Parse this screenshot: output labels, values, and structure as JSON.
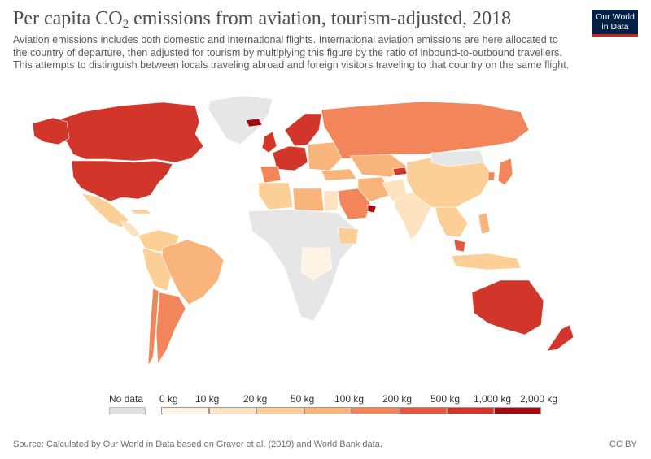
{
  "header": {
    "title_main": "Per capita CO",
    "title_sub": "2",
    "title_rest": " emissions from aviation, tourism-adjusted, 2018",
    "subtitle": "Aviation emissions includes both domestic and international flights. International aviation emissions are here allocated to the country of departure, then adjusted for tourism by multiplying this figure by the ratio of inbound-to-outbound travellers. This attempts to distinguish between locals traveling abroad and foreign visitors traveling to that country on the same flight."
  },
  "logo": {
    "line1": "Our World",
    "line2": "in Data"
  },
  "legend": {
    "no_data_label": "No data",
    "no_data_color": "#e0e0e0",
    "tick_labels": [
      "0 kg",
      "10 kg",
      "20 kg",
      "50 kg",
      "100 kg",
      "200 kg",
      "500 kg",
      "1,000 kg",
      "2,000 kg"
    ],
    "bin_colors": [
      "#fff3e3",
      "#fde3bf",
      "#fbcf95",
      "#f8b47a",
      "#f2865a",
      "#e5573f",
      "#d2352a",
      "#a30b12"
    ]
  },
  "map_colors": {
    "no_data": "#e6e6e6",
    "bin0": "#fff3e3",
    "bin1": "#fde3bf",
    "bin2": "#fbcf95",
    "bin3": "#f8b47a",
    "bin4": "#f2865a",
    "bin5": "#e5573f",
    "bin6": "#d2352a",
    "bin7": "#a30b12"
  },
  "footer": {
    "source": "Source: Calculated by Our World in Data based on Graver et al. (2019) and World Bank data.",
    "license": "CC BY"
  }
}
